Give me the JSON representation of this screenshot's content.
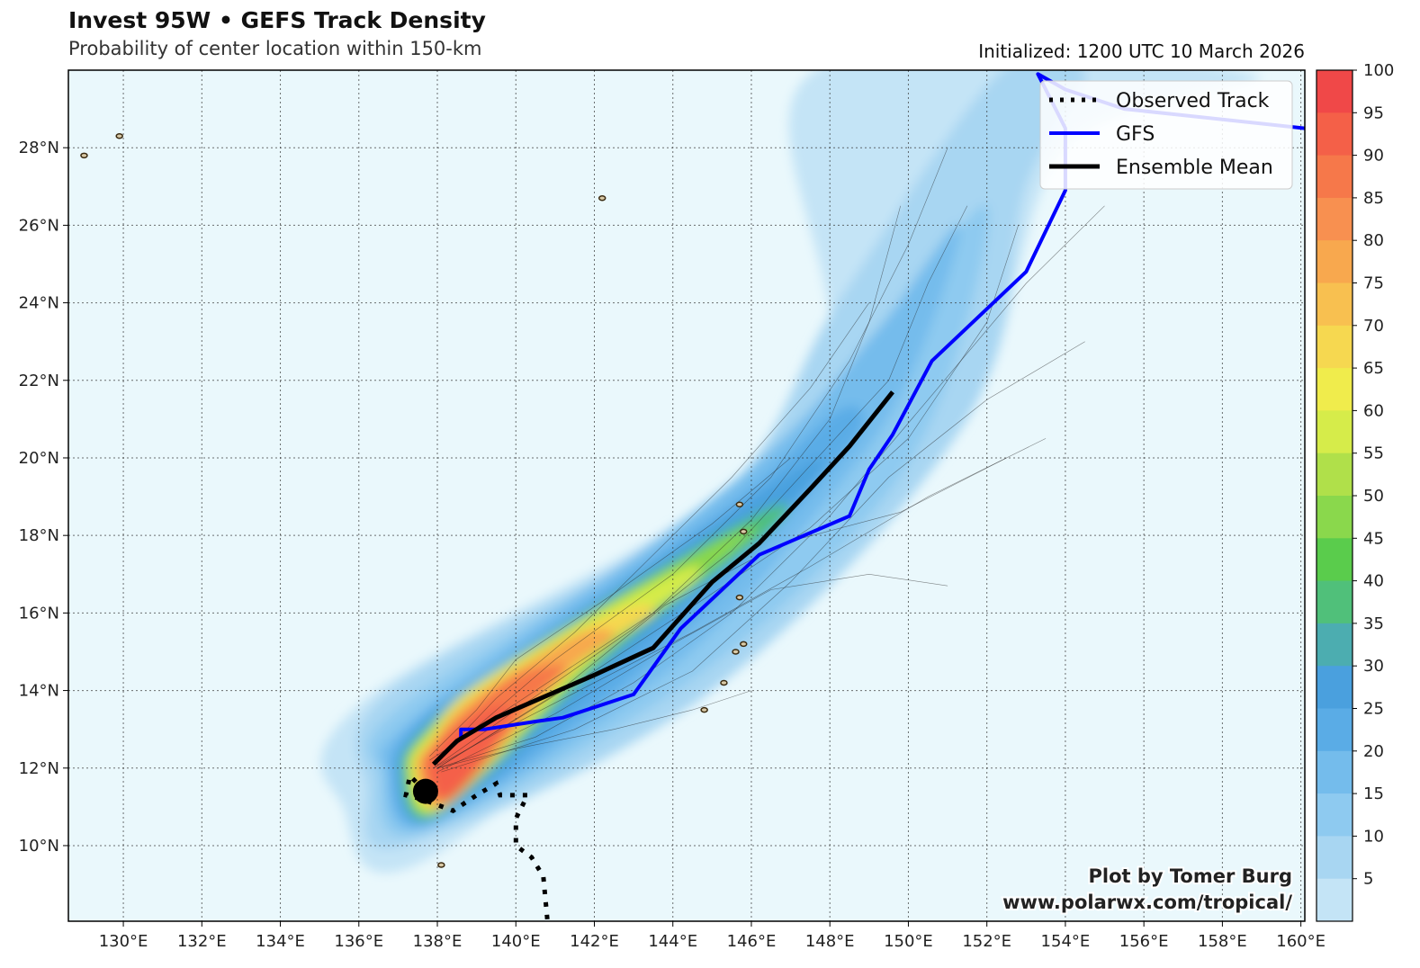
{
  "header": {
    "title": "Invest 95W • GEFS Track Density",
    "subtitle": "Probability of center location within 150-km",
    "initialized": "Initialized: 1200 UTC 10 March 2026"
  },
  "credit": {
    "line1": "Plot by Tomer Burg",
    "line2": "www.polarwx.com/tropical/"
  },
  "legend": {
    "observed": "Observed Track",
    "gfs": "GFS",
    "mean": "Ensemble Mean"
  },
  "colors": {
    "ocean": "#eaf8fc",
    "gfs": "#0000ff",
    "mean": "#000000",
    "observed": "#000000",
    "land": "#d8c9a6"
  },
  "colorbar": {
    "ticks": [
      "100",
      "95",
      "90",
      "85",
      "80",
      "75",
      "70",
      "65",
      "60",
      "55",
      "50",
      "45",
      "40",
      "35",
      "30",
      "25",
      "20",
      "15",
      "10",
      "5"
    ],
    "colors": [
      "#f04848",
      "#f46048",
      "#f6784a",
      "#f89050",
      "#f8a84e",
      "#f8c050",
      "#f6d850",
      "#f0ec4c",
      "#d6ec4a",
      "#b0e04a",
      "#8ad84c",
      "#5acc4c",
      "#50c07a",
      "#4cadb0",
      "#4aa0de",
      "#5aace6",
      "#74bcec",
      "#8ecaf0",
      "#a8d6f2",
      "#c4e4f6"
    ]
  },
  "chart_data": {
    "type": "map",
    "projection": "equirectangular",
    "lon_range": [
      128.6,
      160.1
    ],
    "lat_range": [
      8.05,
      30.0
    ],
    "x_ticks": [
      "130°E",
      "132°E",
      "134°E",
      "136°E",
      "138°E",
      "140°E",
      "142°E",
      "144°E",
      "146°E",
      "148°E",
      "150°E",
      "152°E",
      "154°E",
      "156°E",
      "158°E",
      "160°E"
    ],
    "x_tick_values": [
      130,
      132,
      134,
      136,
      138,
      140,
      142,
      144,
      146,
      148,
      150,
      152,
      154,
      156,
      158,
      160
    ],
    "y_ticks": [
      "10°N",
      "12°N",
      "14°N",
      "16°N",
      "18°N",
      "20°N",
      "22°N",
      "24°N",
      "26°N",
      "28°N"
    ],
    "y_tick_values": [
      10,
      12,
      14,
      16,
      18,
      20,
      22,
      24,
      26,
      28
    ],
    "colorbar_range": [
      0,
      100
    ],
    "density_levels": [
      {
        "value": 5,
        "points": [
          [
            138.0,
            9.8
          ],
          [
            149.5,
            19.5
          ],
          [
            152.0,
            22.0
          ],
          [
            154.0,
            28.0
          ],
          [
            158.8,
            29.9
          ],
          [
            147.5,
            29.9
          ],
          [
            147.5,
            21.0
          ],
          [
            136.2,
            13.8
          ],
          [
            135.6,
            11.0
          ]
        ]
      },
      {
        "value": 10,
        "points": [
          [
            137.2,
            10.0
          ],
          [
            145.0,
            14.0
          ],
          [
            151.5,
            21.0
          ],
          [
            153.0,
            27.0
          ],
          [
            154.5,
            29.9
          ],
          [
            152.3,
            29.9
          ],
          [
            148.2,
            24.0
          ],
          [
            145.0,
            18.8
          ],
          [
            136.8,
            14.0
          ],
          [
            136.2,
            11.5
          ]
        ]
      },
      {
        "value": 15,
        "points": [
          [
            137.6,
            10.3
          ],
          [
            144.5,
            14.3
          ],
          [
            149.0,
            18.5
          ],
          [
            151.0,
            22.0
          ],
          [
            152.0,
            26.5
          ],
          [
            149.5,
            23.5
          ],
          [
            146.0,
            19.4
          ],
          [
            137.2,
            13.7
          ],
          [
            136.5,
            11.8
          ]
        ]
      },
      {
        "value": 20,
        "points": [
          [
            137.8,
            10.5
          ],
          [
            144.0,
            14.6
          ],
          [
            148.0,
            19.0
          ],
          [
            150.0,
            22.0
          ],
          [
            151.3,
            26.0
          ],
          [
            149.2,
            23.3
          ],
          [
            145.8,
            19.6
          ],
          [
            137.5,
            13.4
          ],
          [
            136.7,
            11.9
          ]
        ]
      },
      {
        "value": 25,
        "points": [
          [
            137.9,
            10.6
          ],
          [
            143.5,
            14.8
          ],
          [
            147.3,
            18.9
          ],
          [
            148.8,
            20.8
          ],
          [
            148.2,
            21.2
          ],
          [
            145.5,
            18.8
          ],
          [
            140.0,
            15.0
          ],
          [
            137.6,
            13.3
          ],
          [
            136.8,
            12.0
          ]
        ]
      },
      {
        "value": 30,
        "points": [
          [
            138.0,
            10.7
          ],
          [
            143.0,
            15.0
          ],
          [
            146.8,
            18.6
          ],
          [
            147.8,
            20.0
          ],
          [
            145.2,
            18.4
          ],
          [
            140.0,
            14.9
          ],
          [
            137.7,
            13.2
          ],
          [
            137.0,
            12.0
          ]
        ]
      },
      {
        "value": 40,
        "points": [
          [
            138.0,
            10.8
          ],
          [
            142.5,
            15.0
          ],
          [
            146.3,
            18.0
          ],
          [
            146.8,
            18.8
          ],
          [
            144.8,
            17.8
          ],
          [
            139.8,
            14.7
          ],
          [
            137.8,
            13.1
          ],
          [
            137.1,
            12.0
          ]
        ]
      },
      {
        "value": 50,
        "points": [
          [
            138.1,
            10.9
          ],
          [
            142.3,
            15.0
          ],
          [
            145.5,
            17.6
          ],
          [
            146.0,
            18.2
          ],
          [
            144.0,
            17.2
          ],
          [
            139.5,
            14.5
          ],
          [
            137.8,
            13.0
          ],
          [
            137.2,
            12.0
          ]
        ]
      },
      {
        "value": 60,
        "points": [
          [
            138.1,
            11.0
          ],
          [
            142.0,
            14.9
          ],
          [
            144.5,
            16.8
          ],
          [
            144.0,
            17.0
          ],
          [
            139.2,
            14.3
          ],
          [
            137.8,
            12.9
          ],
          [
            137.3,
            12.0
          ]
        ]
      },
      {
        "value": 70,
        "points": [
          [
            138.2,
            11.05
          ],
          [
            141.5,
            14.6
          ],
          [
            143.5,
            16.0
          ],
          [
            142.5,
            16.0
          ],
          [
            139.0,
            14.0
          ],
          [
            137.9,
            12.8
          ],
          [
            137.4,
            12.0
          ]
        ]
      },
      {
        "value": 80,
        "points": [
          [
            138.2,
            11.1
          ],
          [
            141.0,
            14.2
          ],
          [
            142.5,
            15.4
          ],
          [
            141.5,
            15.4
          ],
          [
            138.8,
            13.7
          ],
          [
            137.9,
            12.7
          ],
          [
            137.5,
            12.0
          ]
        ]
      },
      {
        "value": 90,
        "points": [
          [
            138.3,
            11.15
          ],
          [
            140.5,
            13.7
          ],
          [
            141.3,
            14.6
          ],
          [
            140.0,
            14.4
          ],
          [
            138.6,
            13.3
          ],
          [
            137.95,
            12.6
          ],
          [
            137.6,
            12.0
          ]
        ]
      },
      {
        "value": 95,
        "points": [
          [
            138.3,
            11.2
          ],
          [
            139.8,
            13.2
          ],
          [
            139.5,
            13.6
          ],
          [
            138.4,
            13.0
          ],
          [
            137.8,
            12.2
          ]
        ]
      }
    ],
    "gfs_track": [
      [
        138.6,
        12.8
      ],
      [
        138.6,
        13.0
      ],
      [
        139.2,
        13.0
      ],
      [
        140.5,
        13.2
      ],
      [
        141.2,
        13.3
      ],
      [
        143.0,
        13.9
      ],
      [
        144.2,
        15.6
      ],
      [
        146.2,
        17.5
      ],
      [
        148.5,
        18.5
      ],
      [
        149.0,
        19.7
      ],
      [
        149.6,
        20.6
      ],
      [
        150.6,
        22.5
      ],
      [
        153.0,
        24.8
      ],
      [
        154.0,
        26.9
      ],
      [
        154.0,
        28.5
      ],
      [
        153.3,
        29.9
      ],
      [
        154.0,
        29.5
      ],
      [
        155.5,
        29.0
      ],
      [
        160.1,
        28.5
      ]
    ],
    "mean_track": [
      [
        137.9,
        12.1
      ],
      [
        138.5,
        12.7
      ],
      [
        139.5,
        13.3
      ],
      [
        142.0,
        14.4
      ],
      [
        143.5,
        15.1
      ],
      [
        145.0,
        16.8
      ],
      [
        146.2,
        17.8
      ],
      [
        147.5,
        19.2
      ],
      [
        148.5,
        20.3
      ],
      [
        149.6,
        21.7
      ]
    ],
    "observed_track": [
      [
        140.8,
        8.1
      ],
      [
        140.7,
        9.2
      ],
      [
        140.4,
        9.7
      ],
      [
        140.0,
        10.0
      ],
      [
        140.0,
        10.7
      ],
      [
        140.3,
        11.3
      ],
      [
        139.6,
        11.3
      ],
      [
        139.5,
        11.6
      ],
      [
        139.0,
        11.3
      ],
      [
        138.4,
        10.9
      ],
      [
        137.6,
        11.2
      ],
      [
        137.2,
        11.3
      ],
      [
        137.3,
        11.8
      ],
      [
        137.7,
        11.4
      ]
    ],
    "initial_position": [
      137.7,
      11.4
    ],
    "member_tracks": [
      [
        [
          137.9,
          12.0
        ],
        [
          140.0,
          13.5
        ],
        [
          143.0,
          15.6
        ],
        [
          145.5,
          17.6
        ],
        [
          147.5,
          19.8
        ],
        [
          149.5,
          22.0
        ],
        [
          150.5,
          24.5
        ],
        [
          151.5,
          26.5
        ]
      ],
      [
        [
          137.8,
          12.2
        ],
        [
          140.5,
          14.0
        ],
        [
          143.5,
          16.0
        ],
        [
          146.0,
          18.4
        ],
        [
          148.0,
          21.0
        ],
        [
          149.0,
          23.5
        ],
        [
          149.8,
          26.5
        ]
      ],
      [
        [
          138.0,
          11.9
        ],
        [
          141.0,
          13.4
        ],
        [
          144.0,
          15.2
        ],
        [
          146.5,
          16.6
        ],
        [
          149.0,
          17.0
        ],
        [
          151.0,
          16.7
        ]
      ],
      [
        [
          138.0,
          12.0
        ],
        [
          140.5,
          12.8
        ],
        [
          143.0,
          14.2
        ],
        [
          145.5,
          16.0
        ],
        [
          148.0,
          18.5
        ],
        [
          150.5,
          21.5
        ],
        [
          153.0,
          24.5
        ],
        [
          155.0,
          26.5
        ]
      ],
      [
        [
          137.9,
          12.1
        ],
        [
          139.5,
          13.8
        ],
        [
          141.5,
          15.5
        ],
        [
          143.5,
          17.5
        ],
        [
          145.5,
          19.5
        ],
        [
          147.5,
          21.8
        ],
        [
          149.0,
          24.0
        ]
      ],
      [
        [
          138.1,
          11.9
        ],
        [
          141.5,
          13.0
        ],
        [
          144.5,
          14.5
        ],
        [
          147.0,
          16.8
        ],
        [
          149.5,
          19.5
        ],
        [
          152.0,
          21.5
        ],
        [
          154.5,
          23.0
        ]
      ],
      [
        [
          137.8,
          12.3
        ],
        [
          139.0,
          13.5
        ],
        [
          140.0,
          14.8
        ],
        [
          142.5,
          16.5
        ],
        [
          145.0,
          18.3
        ],
        [
          147.0,
          20.0
        ]
      ],
      [
        [
          138.0,
          12.0
        ],
        [
          142.0,
          14.5
        ],
        [
          145.0,
          16.5
        ],
        [
          147.5,
          18.2
        ],
        [
          150.0,
          20.5
        ],
        [
          152.0,
          23.5
        ],
        [
          152.8,
          26.0
        ]
      ],
      [
        [
          138.0,
          12.0
        ],
        [
          140.0,
          12.5
        ],
        [
          142.5,
          13.0
        ],
        [
          144.5,
          13.5
        ],
        [
          146.0,
          14.0
        ]
      ],
      [
        [
          137.9,
          12.1
        ],
        [
          141.0,
          14.8
        ],
        [
          144.0,
          17.0
        ],
        [
          146.5,
          19.5
        ],
        [
          148.5,
          22.5
        ],
        [
          150.0,
          25.5
        ],
        [
          151.0,
          28.0
        ]
      ],
      [
        [
          138.0,
          12.0
        ],
        [
          141.0,
          13.9
        ],
        [
          143.8,
          16.2
        ],
        [
          146.8,
          17.8
        ],
        [
          149.8,
          18.6
        ],
        [
          152.5,
          20.0
        ]
      ],
      [
        [
          137.9,
          12.0
        ],
        [
          139.5,
          12.9
        ],
        [
          142.0,
          14.2
        ],
        [
          144.5,
          15.5
        ],
        [
          147.5,
          17.2
        ],
        [
          150.5,
          19.0
        ],
        [
          153.5,
          20.5
        ]
      ]
    ],
    "islands": [
      {
        "name": "island-a",
        "lon": 129.9,
        "lat": 28.3
      },
      {
        "name": "island-b",
        "lon": 129.0,
        "lat": 27.8
      },
      {
        "name": "island-c",
        "lon": 142.2,
        "lat": 26.7
      },
      {
        "name": "island-d",
        "lon": 145.7,
        "lat": 18.8
      },
      {
        "name": "island-e",
        "lon": 145.8,
        "lat": 18.1
      },
      {
        "name": "island-f",
        "lon": 145.7,
        "lat": 16.4
      },
      {
        "name": "island-g",
        "lon": 145.8,
        "lat": 15.2
      },
      {
        "name": "island-h",
        "lon": 145.6,
        "lat": 15.0
      },
      {
        "name": "island-i",
        "lon": 145.3,
        "lat": 14.2
      },
      {
        "name": "island-j",
        "lon": 144.8,
        "lat": 13.5
      },
      {
        "name": "island-k",
        "lon": 138.1,
        "lat": 9.5
      }
    ]
  }
}
